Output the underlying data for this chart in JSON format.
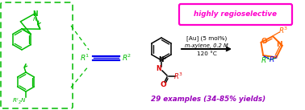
{
  "bg_color": "#ffffff",
  "green_color": "#00bb00",
  "magenta_color": "#ff00cc",
  "orange_color": "#ff6600",
  "blue_triple": "#0000ee",
  "purple_color": "#9900bb",
  "red_color": "#dd0000",
  "black": "#000000",
  "highly_regioselective_text": "highly regioselective",
  "au_condition": "[Au] (5 mol%)",
  "solvent_condition": "m-xylene, 0.2 M",
  "temp_condition": "120 °C",
  "yield_text": "29 examples (34-85% yields)"
}
